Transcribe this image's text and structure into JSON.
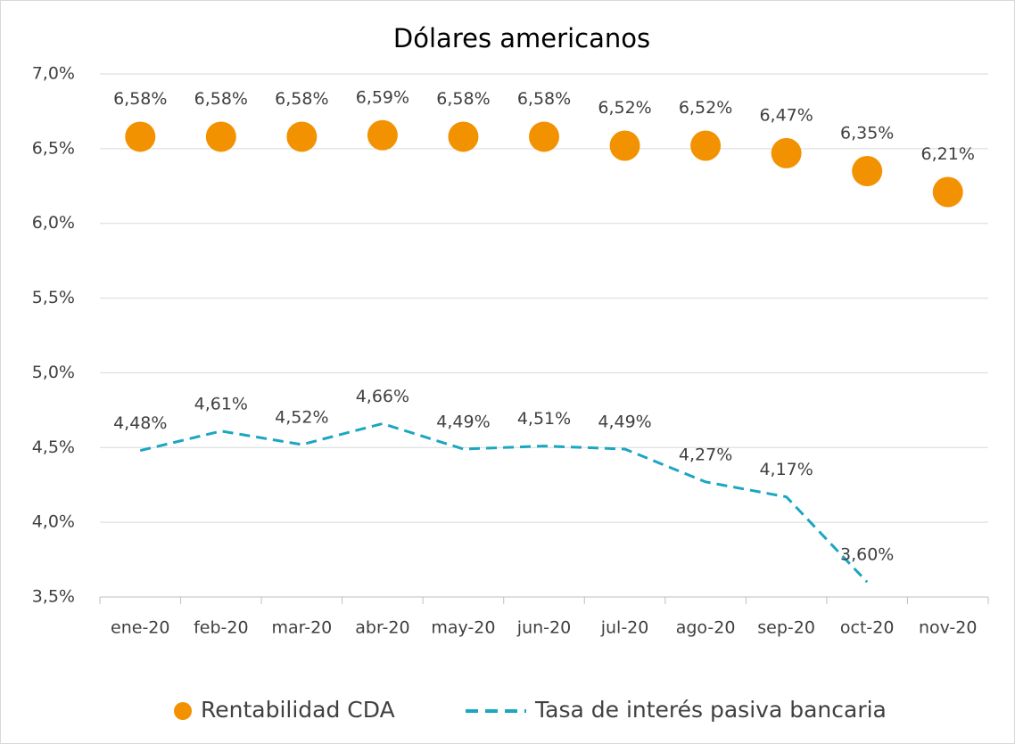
{
  "chart_data": {
    "type": "scatter-line",
    "title": "Dólares americanos",
    "categories": [
      "ene-20",
      "feb-20",
      "mar-20",
      "abr-20",
      "may-20",
      "jun-20",
      "jul-20",
      "ago-20",
      "sep-20",
      "oct-20",
      "nov-20"
    ],
    "series": [
      {
        "name": "Rentabilidad CDA",
        "color": "#f39200",
        "style": "markers",
        "values": [
          6.58,
          6.58,
          6.58,
          6.59,
          6.58,
          6.58,
          6.52,
          6.52,
          6.47,
          6.35,
          6.21
        ],
        "value_labels": [
          "6,58%",
          "6,58%",
          "6,58%",
          "6,59%",
          "6,58%",
          "6,58%",
          "6,52%",
          "6,52%",
          "6,47%",
          "6,35%",
          "6,21%"
        ]
      },
      {
        "name": "Tasa de interés pasiva bancaria",
        "color": "#1ba6c1",
        "style": "dashed-line",
        "values": [
          4.48,
          4.61,
          4.52,
          4.66,
          4.49,
          4.51,
          4.49,
          4.27,
          4.17,
          3.6,
          null
        ],
        "value_labels": [
          "4,48%",
          "4,61%",
          "4,52%",
          "4,66%",
          "4,49%",
          "4,51%",
          "4,49%",
          "4,27%",
          "4,17%",
          "3,60%",
          null
        ]
      }
    ],
    "ylim": [
      3.5,
      7.0
    ],
    "yticks": [
      {
        "value": 3.5,
        "label": "3,5%"
      },
      {
        "value": 4.0,
        "label": "4,0%"
      },
      {
        "value": 4.5,
        "label": "4,5%"
      },
      {
        "value": 5.0,
        "label": "5,0%"
      },
      {
        "value": 5.5,
        "label": "5,5%"
      },
      {
        "value": 6.0,
        "label": "6,0%"
      },
      {
        "value": 6.5,
        "label": "6,5%"
      },
      {
        "value": 7.0,
        "label": "7,0%"
      }
    ],
    "grid": true,
    "legend": "bottom"
  }
}
